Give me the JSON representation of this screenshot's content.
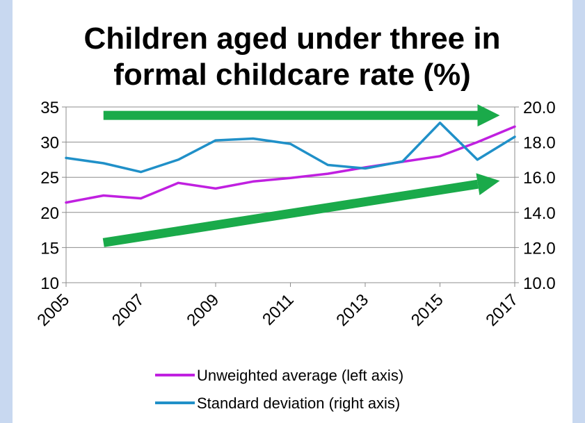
{
  "chart_data": {
    "type": "line",
    "title_lines": [
      "Children aged under three in",
      "formal childcare rate (%)"
    ],
    "x": [
      2005,
      2006,
      2007,
      2008,
      2009,
      2010,
      2011,
      2012,
      2013,
      2014,
      2015,
      2016,
      2017
    ],
    "x_tick_labels": [
      "2005",
      "2007",
      "2009",
      "2011",
      "2013",
      "2015",
      "2017"
    ],
    "y_left": {
      "min": 10,
      "max": 35,
      "tick_labels": [
        "10",
        "15",
        "20",
        "25",
        "30",
        "35"
      ]
    },
    "y_right": {
      "min": 10,
      "max": 20,
      "tick_labels": [
        "10.0",
        "12.0",
        "14.0",
        "16.0",
        "18.0",
        "20.0"
      ]
    },
    "series": [
      {
        "name": "Unweighted average (left axis)",
        "axis": "left",
        "color": "#c020e0",
        "values": [
          21.4,
          22.4,
          22.0,
          24.2,
          23.4,
          24.4,
          24.9,
          25.5,
          26.4,
          27.2,
          28.0,
          30.0,
          32.2
        ]
      },
      {
        "name": "Standard deviation (right axis)",
        "axis": "right",
        "color": "#2090c8",
        "values": [
          17.1,
          16.8,
          16.3,
          17.0,
          18.1,
          18.2,
          17.9,
          16.7,
          16.5,
          16.9,
          19.1,
          17.0,
          18.3
        ]
      }
    ],
    "annotations": [
      {
        "kind": "arrow",
        "color": "#1aaa4a",
        "from": {
          "x": 2006,
          "y_left": 33.8
        },
        "to": {
          "x": 2016.6,
          "y_left": 33.8
        }
      },
      {
        "kind": "arrow",
        "color": "#1aaa4a",
        "from": {
          "x": 2006,
          "y_left": 15.7
        },
        "to": {
          "x": 2016.6,
          "y_left": 24.5
        }
      }
    ],
    "grid": true,
    "legend_position": "bottom"
  }
}
